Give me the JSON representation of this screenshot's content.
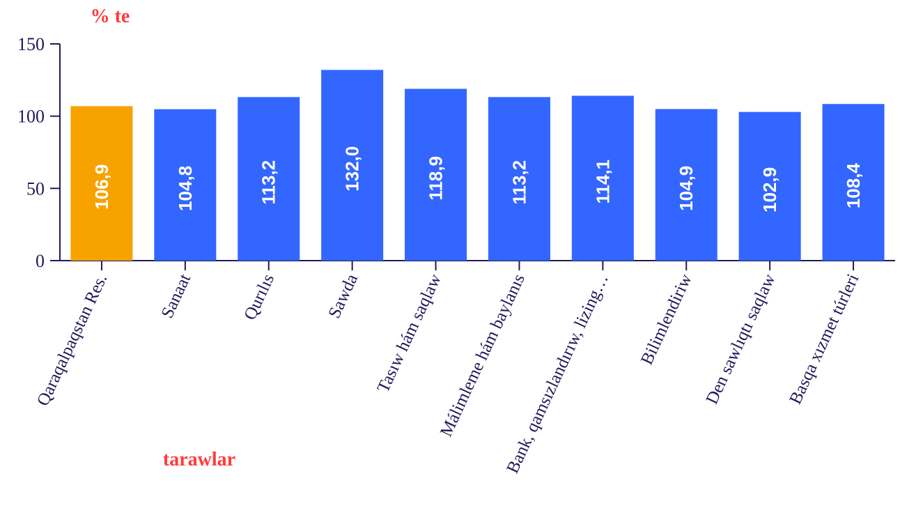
{
  "chart_data": {
    "type": "bar",
    "title": "",
    "ylabel": "% te",
    "xlabel": "tarawlar",
    "ylim": [
      0,
      150
    ],
    "yticks": [
      0,
      50,
      100,
      150
    ],
    "grid": false,
    "categories": [
      "Qaraqalpaqstan Res.",
      "Sanaat",
      "Qurılıs",
      "Sawda",
      "Tasıw hám saqlaw",
      "Málimleme hám baylanıs",
      "Bank, qamsızlandırıw, lizing…",
      "Bilimlendiriw",
      "Den sawlıqtı saqlaw",
      "Basqa xızmet túrleri"
    ],
    "values": [
      106.9,
      104.8,
      113.2,
      132.0,
      118.9,
      113.2,
      114.1,
      104.9,
      102.9,
      108.4
    ],
    "value_labels": [
      "106,9",
      "104,8",
      "113,2",
      "132,0",
      "118,9",
      "113,2",
      "114,1",
      "104,9",
      "102,9",
      "108,4"
    ],
    "colors": {
      "highlight": "#f8a200",
      "bar": "#3366ff",
      "axis": "#1f1a5a",
      "axis_title": "#ff3b3b"
    },
    "highlight_index": 0
  }
}
